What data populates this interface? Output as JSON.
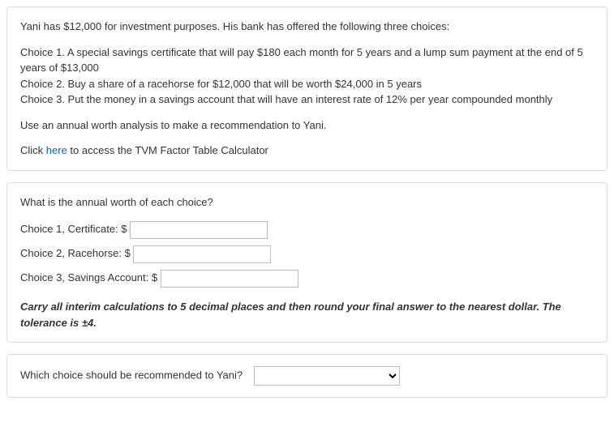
{
  "problem": {
    "intro": "Yani has $12,000 for investment purposes. His bank has offered the following three choices:",
    "choice1": "Choice 1. A special savings certificate that will pay $180 each month for 5 years and a lump sum payment at the end of 5 years of $13,000",
    "choice2": "Choice 2. Buy a share of a racehorse for $12,000 that will be worth $24,000 in 5 years",
    "choice3": "Choice 3. Put the money in a savings account that will have an interest rate of 12% per year compounded monthly",
    "task": "Use an annual worth analysis to make a recommendation to Yani.",
    "click_prefix": "Click ",
    "click_link": "here",
    "click_suffix": " to access the TVM Factor Table Calculator"
  },
  "question1": {
    "heading": "What is the annual worth of each choice?",
    "rows": [
      {
        "label": "Choice 1, Certificate: $"
      },
      {
        "label": "Choice 2, Racehorse: $"
      },
      {
        "label": "Choice 3, Savings Account: $"
      }
    ],
    "instruction": "Carry all interim calculations to 5 decimal places and then round your final answer to the nearest dollar. The tolerance is ±4."
  },
  "question2": {
    "prompt": "Which choice should be recommended to Yani?"
  }
}
